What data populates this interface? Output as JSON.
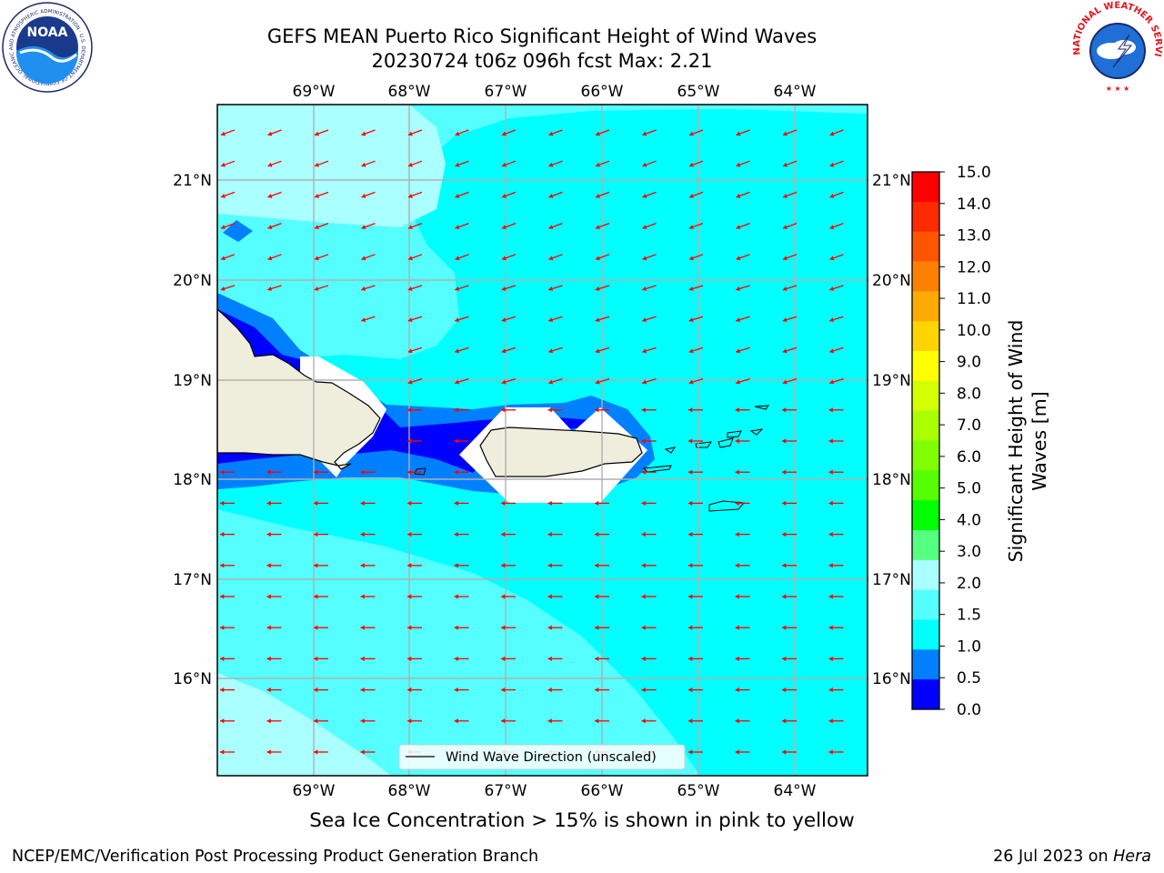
{
  "title": {
    "line1": "GEFS MEAN Puerto Rico Significant Height of Wind Waves",
    "line2": "20230724 t06z 096h fcst   Max: 2.21"
  },
  "map": {
    "lon_labels": [
      "69°W",
      "68°W",
      "67°W",
      "66°W",
      "65°W",
      "64°W"
    ],
    "lat_labels": [
      "21°N",
      "20°N",
      "19°N",
      "18°N",
      "17°N",
      "16°N"
    ],
    "legend_label": "Wind Wave Direction (unscaled)",
    "colors": {
      "water_main": "#00ffff",
      "water_light": "#55ffff",
      "water_lighter": "#aaffff",
      "water_mid": "#0080ff",
      "water_deep": "#0000ff",
      "land": "#efeedd",
      "arrow": "#ff0000"
    }
  },
  "colorbar": {
    "label": "Significant Height of Wind Waves [m]",
    "label_line1": "Significant Height of Wind",
    "label_line2": "Waves [m]",
    "ticks": [
      "15.0",
      "14.0",
      "13.0",
      "12.0",
      "11.0",
      "10.0",
      "9.0",
      "8.0",
      "7.0",
      "6.0",
      "5.0",
      "4.0",
      "3.0",
      "2.0",
      "1.5",
      "1.0",
      "0.5",
      "0.0"
    ],
    "colors_top_to_bottom": [
      "#ff0000",
      "#ff2a00",
      "#ff5500",
      "#ff8000",
      "#ffaa00",
      "#ffd400",
      "#ffff00",
      "#d4ff00",
      "#aaff00",
      "#80ff00",
      "#55ff00",
      "#00ff00",
      "#55ff80",
      "#aaffff",
      "#55ffff",
      "#00ffff",
      "#0080ff",
      "#0000ff"
    ]
  },
  "subtitle": "Sea Ice Concentration > 15% is shown in pink to yellow",
  "footer": {
    "left": "NCEP/EMC/Verification Post Processing Product Generation Branch",
    "right_prefix": "26 Jul 2023 on ",
    "right_host": "Hera"
  },
  "logos": {
    "noaa_text": "NOAA",
    "noaa_ring": "NATIONAL OCEANIC AND ATMOSPHERIC ADMINISTRATION · U.S. DEPARTMENT OF COMMERCE",
    "nws_ring": "NATIONAL WEATHER SERVICE"
  }
}
